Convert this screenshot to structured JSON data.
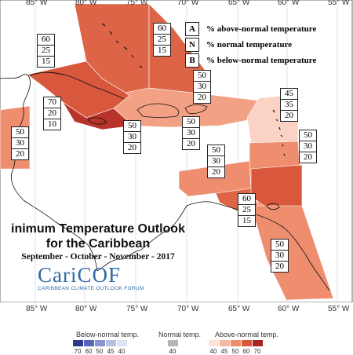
{
  "title": {
    "line1": "inimum Temperature Outlook",
    "line2": "for the Caribbean",
    "line3": "September - October - November - 2017"
  },
  "logo": {
    "name": "CariCOF",
    "subtitle": "CARIBBEAN CLIMATE OUTLOOK FORUM"
  },
  "legend": [
    {
      "key": "A",
      "text": "% above-normal temperature"
    },
    {
      "key": "N",
      "text": "% normal temperature"
    },
    {
      "key": "B",
      "text": "% below-normal temperature"
    }
  ],
  "longitudes_top": [
    "85° W",
    "80° W",
    "75° W",
    "70° W",
    "65° W",
    "60° W",
    "55° W"
  ],
  "longitudes_bottom": [
    "85° W",
    "80° W",
    "75° W",
    "70° W",
    "65° W",
    "60° W",
    "55° W"
  ],
  "probability_boxes": [
    {
      "id": "bahamas-west",
      "values": [
        "60",
        "25",
        "15"
      ]
    },
    {
      "id": "bahamas-east",
      "values": [
        "60",
        "25",
        "15"
      ]
    },
    {
      "id": "cuba-jamaica",
      "values": [
        "70",
        "20",
        "10"
      ]
    },
    {
      "id": "central-america",
      "values": [
        "50",
        "30",
        "20"
      ]
    },
    {
      "id": "hispaniola",
      "values": [
        "50",
        "30",
        "20"
      ]
    },
    {
      "id": "puerto-rico",
      "values": [
        "50",
        "30",
        "20"
      ]
    },
    {
      "id": "western-caribbean",
      "values": [
        "50",
        "30",
        "20"
      ]
    },
    {
      "id": "leeward-islands",
      "values": [
        "45",
        "35",
        "20"
      ]
    },
    {
      "id": "windward-islands",
      "values": [
        "50",
        "30",
        "20"
      ]
    },
    {
      "id": "abc-islands",
      "values": [
        "50",
        "30",
        "20"
      ]
    },
    {
      "id": "trinidad",
      "values": [
        "60",
        "25",
        "15"
      ]
    },
    {
      "id": "guianas",
      "values": [
        "50",
        "30",
        "20"
      ]
    }
  ],
  "colorbar": {
    "below_label": "Below-normal temp.",
    "normal_label": "Normal temp.",
    "above_label": "Above-normal temp.",
    "below_values": [
      "70",
      "60",
      "50",
      "45",
      "40"
    ],
    "normal_values": [
      "40"
    ],
    "above_values": [
      "40",
      "45",
      "50",
      "60",
      "70"
    ],
    "below_colors": [
      "#2b3a8c",
      "#5566b8",
      "#8895cf",
      "#b6bee3",
      "#dde1f2"
    ],
    "normal_colors": [
      "#b5b5b5"
    ],
    "above_colors": [
      "#fde3da",
      "#f7b8a1",
      "#ee8e6e",
      "#d8573d",
      "#a6251e"
    ]
  }
}
